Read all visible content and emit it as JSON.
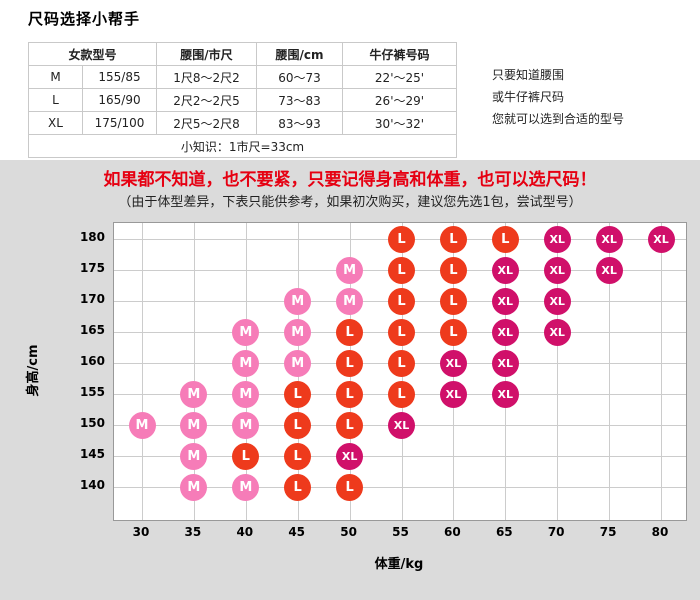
{
  "header": {
    "title": "尺码选择小帮手",
    "table": {
      "columns": [
        "女款型号",
        "腰围/市尺",
        "腰围/cm",
        "牛仔裤号码"
      ],
      "rows": [
        {
          "size": "M",
          "spec": "155/85",
          "waist_chi": "1尺8～2尺2",
          "waist_cm": "60～73",
          "jeans": "22'～25'"
        },
        {
          "size": "L",
          "spec": "165/90",
          "waist_chi": "2尺2～2尺5",
          "waist_cm": "73～83",
          "jeans": "26'～29'"
        },
        {
          "size": "XL",
          "spec": "175/100",
          "waist_chi": "2尺5～2尺8",
          "waist_cm": "83～93",
          "jeans": "30'～32'"
        }
      ],
      "footnote": "小知识：1市尺=33cm"
    },
    "side_note": [
      "只要知道腰围",
      "或牛仔裤尺码",
      "您就可以选到合适的型号"
    ]
  },
  "notice": {
    "headline": "如果都不知道，也不要紧，只要记得身高和体重，也可以选尺码！",
    "subline": "（由于体型差异，下表只能供参考，如果初次购买，建议您先选1包，尝试型号）",
    "headline_color": "#e60012"
  },
  "chart_data": {
    "type": "scatter",
    "title": "",
    "xlabel": "体重/kg",
    "ylabel": "身高/cm",
    "x_ticks": [
      30,
      35,
      40,
      45,
      50,
      55,
      60,
      65,
      70,
      75,
      80
    ],
    "y_ticks": [
      180,
      175,
      170,
      165,
      160,
      155,
      150,
      145,
      140
    ],
    "xlim": [
      27,
      82.5
    ],
    "ylim": [
      135,
      182.5
    ],
    "grid": true,
    "legend": false,
    "series": [
      {
        "name": "M",
        "color": "#f67cb8",
        "points": [
          [
            50,
            175
          ],
          [
            45,
            170
          ],
          [
            50,
            170
          ],
          [
            40,
            165
          ],
          [
            45,
            165
          ],
          [
            40,
            160
          ],
          [
            45,
            160
          ],
          [
            35,
            155
          ],
          [
            40,
            155
          ],
          [
            30,
            150
          ],
          [
            35,
            150
          ],
          [
            40,
            150
          ],
          [
            35,
            145
          ],
          [
            35,
            140
          ],
          [
            40,
            140
          ]
        ]
      },
      {
        "name": "L",
        "color": "#ee3a1c",
        "points": [
          [
            55,
            180
          ],
          [
            60,
            180
          ],
          [
            65,
            180
          ],
          [
            55,
            175
          ],
          [
            60,
            175
          ],
          [
            55,
            170
          ],
          [
            60,
            170
          ],
          [
            50,
            165
          ],
          [
            55,
            165
          ],
          [
            60,
            165
          ],
          [
            50,
            160
          ],
          [
            55,
            160
          ],
          [
            45,
            155
          ],
          [
            50,
            155
          ],
          [
            55,
            155
          ],
          [
            45,
            150
          ],
          [
            50,
            150
          ],
          [
            40,
            145
          ],
          [
            45,
            145
          ],
          [
            45,
            140
          ],
          [
            50,
            140
          ]
        ]
      },
      {
        "name": "XL",
        "color": "#d0106a",
        "points": [
          [
            70,
            180
          ],
          [
            75,
            180
          ],
          [
            80,
            180
          ],
          [
            65,
            175
          ],
          [
            70,
            175
          ],
          [
            75,
            175
          ],
          [
            65,
            170
          ],
          [
            70,
            170
          ],
          [
            65,
            165
          ],
          [
            70,
            165
          ],
          [
            60,
            160
          ],
          [
            65,
            160
          ],
          [
            60,
            155
          ],
          [
            65,
            155
          ],
          [
            55,
            150
          ],
          [
            50,
            145
          ]
        ]
      }
    ]
  }
}
